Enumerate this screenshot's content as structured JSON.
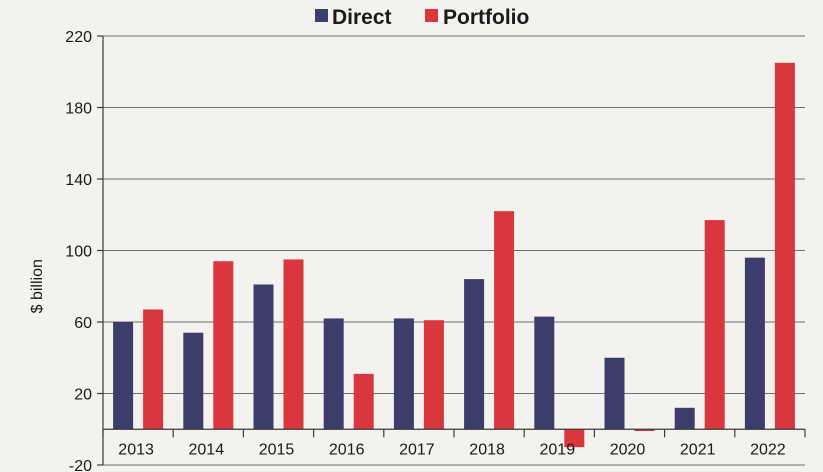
{
  "chart_data": {
    "type": "bar",
    "categories": [
      "2013",
      "2014",
      "2015",
      "2016",
      "2017",
      "2018",
      "2019",
      "2020",
      "2021",
      "2022"
    ],
    "series": [
      {
        "name": "Direct",
        "color": "#3d3d6b",
        "values": [
          60,
          54,
          81,
          62,
          62,
          84,
          63,
          40,
          12,
          96
        ]
      },
      {
        "name": "Portfolio",
        "color": "#d9363e",
        "values": [
          67,
          94,
          95,
          31,
          61,
          122,
          -10,
          -1,
          117,
          205
        ]
      }
    ],
    "ylabel": "$ billion",
    "ylim": [
      -20,
      220
    ],
    "yticks": [
      "-20",
      "20",
      "60",
      "100",
      "140",
      "180",
      "220"
    ],
    "legend_position": "top-center",
    "grid": true
  }
}
